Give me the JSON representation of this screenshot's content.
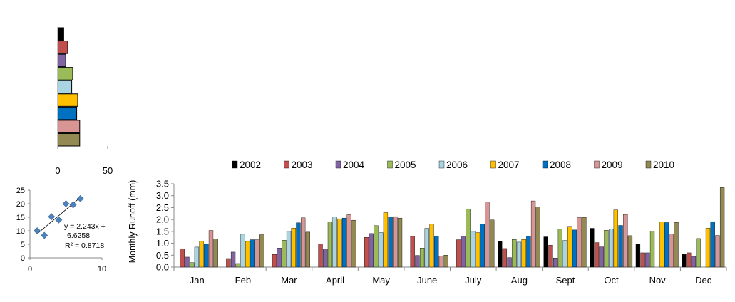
{
  "chart_data": [
    {
      "type": "bar",
      "orientation": "horizontal",
      "categories": [
        "2002",
        "2003",
        "2004",
        "2005",
        "2006",
        "2007",
        "2008",
        "2009",
        "2010"
      ],
      "values": [
        6,
        10,
        8,
        15,
        14,
        20,
        19,
        22,
        22
      ],
      "xlim": [
        0,
        50
      ],
      "xticks": [
        "0",
        "50"
      ]
    },
    {
      "type": "scatter",
      "x": [
        1,
        2,
        3,
        4,
        5,
        6,
        7
      ],
      "y": [
        10,
        8.3,
        15.2,
        14,
        20,
        19.6,
        21.9
      ],
      "xlim": [
        0,
        10
      ],
      "ylim": [
        0,
        25
      ],
      "xticks": [
        "0",
        "10"
      ],
      "yticks": [
        "0",
        "5",
        "10",
        "15",
        "20",
        "25"
      ],
      "trendline": true,
      "equation_line1": "y = 2.243x +",
      "equation_line2": "6.6258",
      "r2": "R² = 0.8718"
    },
    {
      "type": "bar",
      "categories": [
        "Jan",
        "Feb",
        "Mar",
        "April",
        "May",
        "June",
        "July",
        "Aug",
        "Sept",
        "Oct",
        "Nov",
        "Dec"
      ],
      "series": [
        {
          "name": "2002",
          "values": [
            0,
            0,
            0,
            0,
            0,
            0,
            0,
            1.1,
            1.27,
            1.63,
            0.97,
            0.53
          ]
        },
        {
          "name": "2003",
          "values": [
            0.76,
            0.36,
            0.53,
            0.97,
            1.25,
            1.29,
            1.15,
            0.78,
            0.92,
            1.03,
            0.6,
            0.6
          ]
        },
        {
          "name": "2004",
          "values": [
            0.42,
            0.63,
            0.8,
            0.76,
            1.41,
            0.49,
            1.31,
            0.4,
            0.38,
            0.85,
            0.6,
            0.45
          ]
        },
        {
          "name": "2005",
          "values": [
            0.19,
            0.15,
            1.13,
            1.9,
            1.74,
            0.8,
            2.43,
            1.16,
            1.61,
            1.55,
            1.51,
            1.2
          ]
        },
        {
          "name": "2006",
          "values": [
            0.84,
            1.38,
            1.5,
            2.11,
            1.45,
            1.63,
            1.5,
            1.05,
            1.12,
            1.6,
            0,
            0
          ]
        },
        {
          "name": "2007",
          "values": [
            1.1,
            1.08,
            1.64,
            2.03,
            2.29,
            1.81,
            1.45,
            1.16,
            1.71,
            2.4,
            1.9,
            1.64
          ]
        },
        {
          "name": "2008",
          "values": [
            0.96,
            1.15,
            1.86,
            2.06,
            2.1,
            1.3,
            1.8,
            1.31,
            1.56,
            1.75,
            1.87,
            1.91
          ]
        },
        {
          "name": "2009",
          "values": [
            1.54,
            1.15,
            2.07,
            2.2,
            2.12,
            0.47,
            2.73,
            2.78,
            2.08,
            2.21,
            1.4,
            1.33
          ]
        },
        {
          "name": "2010",
          "values": [
            1.19,
            1.36,
            1.47,
            1.97,
            2.06,
            0.5,
            1.98,
            2.52,
            2.09,
            1.32,
            1.88,
            3.34
          ]
        }
      ],
      "ylabel": "Monthly  Runoff (mm)",
      "ylim": [
        0,
        3.5
      ],
      "yticks": [
        "0.0",
        "0.5",
        "1.0",
        "1.5",
        "2.0",
        "2.5",
        "3.0",
        "3.5"
      ],
      "grid": false,
      "legend": "top"
    }
  ],
  "colors": {
    "2002": "#000000",
    "2003": "#c0504d",
    "2004": "#8064a2",
    "2005": "#9bbb59",
    "2006": "#a9d4e2",
    "2007": "#ffc000",
    "2008": "#0070c0",
    "2009": "#d99594",
    "2010": "#938953",
    "scatter_point": "#4f81bd"
  }
}
